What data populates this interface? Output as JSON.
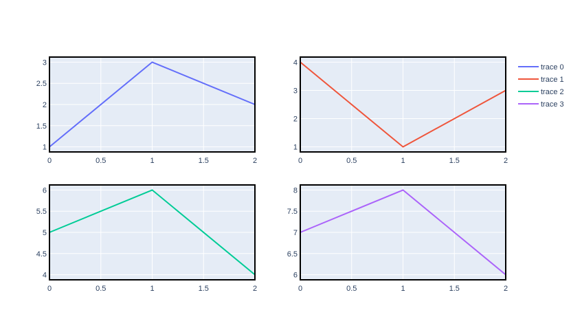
{
  "chart_data": [
    {
      "type": "line",
      "x": [
        0,
        1,
        2
      ],
      "series": [
        {
          "name": "trace 0",
          "values": [
            1,
            3,
            2
          ],
          "color": "#636efa"
        }
      ],
      "xlim": [
        0,
        2
      ],
      "ylim": [
        0.88,
        3.12
      ],
      "xticks": [
        0,
        0.5,
        1,
        1.5,
        2
      ],
      "xtick_labels": [
        "0",
        "0.5",
        "1",
        "1.5",
        "2"
      ],
      "yticks": [
        1,
        1.5,
        2,
        2.5,
        3
      ],
      "ytick_labels": [
        "1",
        "1.5",
        "2",
        "2.5",
        "3"
      ],
      "grid": true
    },
    {
      "type": "line",
      "x": [
        0,
        1,
        2
      ],
      "series": [
        {
          "name": "trace 1",
          "values": [
            4,
            1,
            3
          ],
          "color": "#ef553b"
        }
      ],
      "xlim": [
        0,
        2
      ],
      "ylim": [
        0.82,
        4.18
      ],
      "xticks": [
        0,
        0.5,
        1,
        1.5,
        2
      ],
      "xtick_labels": [
        "0",
        "0.5",
        "1",
        "1.5",
        "2"
      ],
      "yticks": [
        1,
        2,
        3,
        4
      ],
      "ytick_labels": [
        "1",
        "2",
        "3",
        "4"
      ],
      "grid": true
    },
    {
      "type": "line",
      "x": [
        0,
        1,
        2
      ],
      "series": [
        {
          "name": "trace 2",
          "values": [
            5,
            6,
            4
          ],
          "color": "#00cc96"
        }
      ],
      "xlim": [
        0,
        2
      ],
      "ylim": [
        3.88,
        6.12
      ],
      "xticks": [
        0,
        0.5,
        1,
        1.5,
        2
      ],
      "xtick_labels": [
        "0",
        "0.5",
        "1",
        "1.5",
        "2"
      ],
      "yticks": [
        4,
        4.5,
        5,
        5.5,
        6
      ],
      "ytick_labels": [
        "4",
        "4.5",
        "5",
        "5.5",
        "6"
      ],
      "grid": true
    },
    {
      "type": "line",
      "x": [
        0,
        1,
        2
      ],
      "series": [
        {
          "name": "trace 3",
          "values": [
            7,
            8,
            6
          ],
          "color": "#ab63fa"
        }
      ],
      "xlim": [
        0,
        2
      ],
      "ylim": [
        5.88,
        8.12
      ],
      "xticks": [
        0,
        0.5,
        1,
        1.5,
        2
      ],
      "xtick_labels": [
        "0",
        "0.5",
        "1",
        "1.5",
        "2"
      ],
      "yticks": [
        6,
        6.5,
        7,
        7.5,
        8
      ],
      "ytick_labels": [
        "6",
        "6.5",
        "7",
        "7.5",
        "8"
      ],
      "grid": true
    }
  ],
  "legend": {
    "placement": "top-right",
    "items": [
      {
        "label": "trace 0",
        "color": "#636efa"
      },
      {
        "label": "trace 1",
        "color": "#ef553b"
      },
      {
        "label": "trace 2",
        "color": "#00cc96"
      },
      {
        "label": "trace 3",
        "color": "#ab63fa"
      }
    ]
  },
  "style": {
    "plot_bg": "#e5ecf6",
    "grid_color": "#ffffff",
    "frame_color": "#000000",
    "tick_color": "#2a3f5f"
  }
}
